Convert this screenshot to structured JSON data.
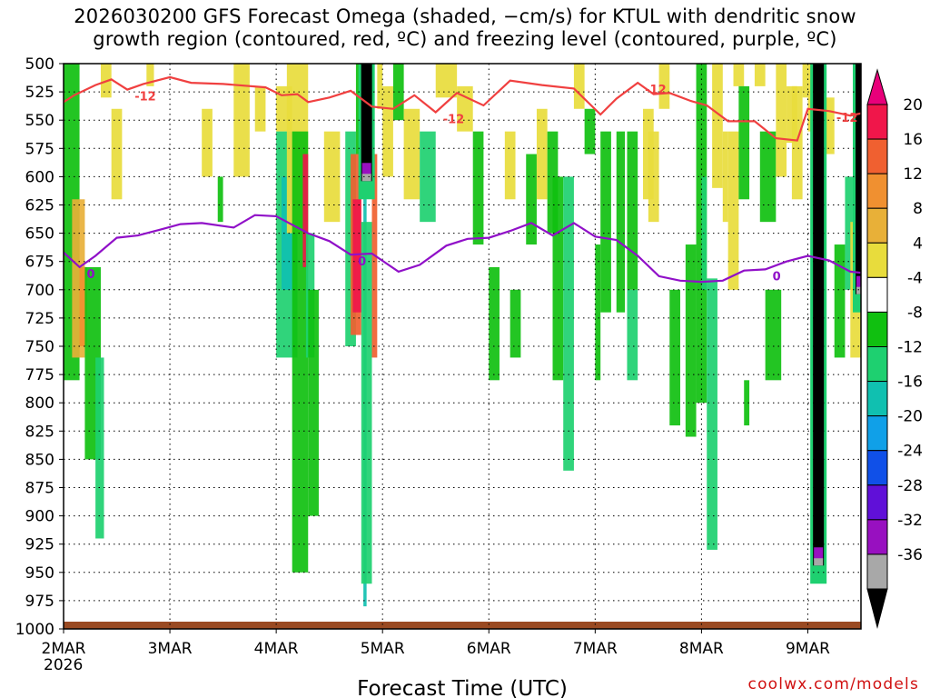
{
  "title": {
    "line1": "2026030200 GFS Forecast Omega (shaded, −cm/s) for KTUL with dendritic snow",
    "line2": "growth region (contoured, red, ºC) and freezing level (contoured, purple, ºC)"
  },
  "credit": "coolwx.com/models",
  "chart_data": {
    "type": "heatmap",
    "title": "2026030200 GFS Forecast Omega (shaded, −cm/s) for KTUL with dendritic snow growth region (contoured, red, ºC) and freezing level (contoured, purple, ºC)",
    "xlabel": "Forecast Time (UTC)",
    "ylabel": "",
    "x_axis": {
      "ticks": [
        "2MAR",
        "3MAR",
        "4MAR",
        "5MAR",
        "6MAR",
        "7MAR",
        "8MAR",
        "9MAR"
      ],
      "sub_label": "2026",
      "range_days": [
        0,
        7.5
      ]
    },
    "y_axis": {
      "ticks": [
        500,
        525,
        550,
        575,
        600,
        625,
        650,
        675,
        700,
        725,
        750,
        775,
        800,
        825,
        850,
        875,
        900,
        925,
        950,
        975,
        1000
      ],
      "range_hpa": [
        500,
        1000
      ],
      "inverted": true
    },
    "grid": true,
    "colorbar": {
      "labels": [
        "20",
        "16",
        "12",
        "8",
        "4",
        "-4",
        "-8",
        "-12",
        "-16",
        "-20",
        "-24",
        "-28",
        "-32",
        "-36"
      ],
      "colors": [
        "#f0164a",
        "#f06030",
        "#f09030",
        "#e8b038",
        "#e8dc3c",
        "#ffffff",
        "#10c010",
        "#1ed070",
        "#10c0b0",
        "#10a0e8",
        "#1050e8",
        "#6010d8",
        "#9810c0",
        "#a8a8a8",
        "#000000"
      ]
    },
    "contours": [
      {
        "name": "dendritic snow growth region (-12 ºC)",
        "color": "#f04040",
        "label": "-12",
        "points": [
          [
            0,
            534
          ],
          [
            0.1,
            528
          ],
          [
            0.3,
            519
          ],
          [
            0.45,
            514
          ],
          [
            0.6,
            523
          ],
          [
            0.75,
            518
          ],
          [
            1.0,
            512
          ],
          [
            1.2,
            517
          ],
          [
            1.5,
            518
          ],
          [
            1.9,
            521
          ],
          [
            2.05,
            528
          ],
          [
            2.2,
            527
          ],
          [
            2.3,
            534
          ],
          [
            2.5,
            530
          ],
          [
            2.7,
            524
          ],
          [
            2.9,
            538
          ],
          [
            3.1,
            540
          ],
          [
            3.3,
            528
          ],
          [
            3.5,
            543
          ],
          [
            3.7,
            526
          ],
          [
            3.95,
            537
          ],
          [
            4.2,
            515
          ],
          [
            4.5,
            519
          ],
          [
            4.8,
            522
          ],
          [
            5.05,
            545
          ],
          [
            5.2,
            531
          ],
          [
            5.4,
            517
          ],
          [
            5.55,
            527
          ],
          [
            5.7,
            526
          ],
          [
            5.9,
            533
          ],
          [
            6.05,
            537
          ],
          [
            6.25,
            551
          ],
          [
            6.5,
            551
          ],
          [
            6.7,
            566
          ],
          [
            6.9,
            568
          ],
          [
            7.0,
            540
          ],
          [
            7.2,
            542
          ],
          [
            7.4,
            546
          ],
          [
            7.5,
            544
          ]
        ]
      },
      {
        "name": "freezing level (0 ºC)",
        "color": "#9010c8",
        "label": "0",
        "points": [
          [
            0,
            667
          ],
          [
            0.15,
            680
          ],
          [
            0.3,
            670
          ],
          [
            0.5,
            654
          ],
          [
            0.7,
            652
          ],
          [
            0.9,
            647
          ],
          [
            1.1,
            642
          ],
          [
            1.3,
            641
          ],
          [
            1.6,
            645
          ],
          [
            1.8,
            634
          ],
          [
            2.0,
            635
          ],
          [
            2.3,
            650
          ],
          [
            2.5,
            657
          ],
          [
            2.7,
            669
          ],
          [
            2.9,
            668
          ],
          [
            3.15,
            684
          ],
          [
            3.35,
            678
          ],
          [
            3.6,
            661
          ],
          [
            3.8,
            655
          ],
          [
            4.0,
            654
          ],
          [
            4.2,
            648
          ],
          [
            4.4,
            641
          ],
          [
            4.6,
            652
          ],
          [
            4.8,
            641
          ],
          [
            5.0,
            653
          ],
          [
            5.2,
            656
          ],
          [
            5.4,
            670
          ],
          [
            5.6,
            688
          ],
          [
            5.8,
            692
          ],
          [
            6.0,
            693
          ],
          [
            6.2,
            692
          ],
          [
            6.4,
            683
          ],
          [
            6.6,
            682
          ],
          [
            6.8,
            675
          ],
          [
            7.0,
            670
          ],
          [
            7.2,
            674
          ],
          [
            7.4,
            684
          ],
          [
            7.5,
            685
          ]
        ]
      }
    ],
    "dominant_features": [
      {
        "time_days": 7.1,
        "pressure_range": [
          500,
          960
        ],
        "min_value_label": "-36"
      },
      {
        "time_days": 7.5,
        "pressure_range": [
          500,
          720
        ],
        "min_value_label": "-36"
      },
      {
        "time_days": 2.85,
        "pressure_range": [
          500,
          620
        ],
        "min_value_label": "-36"
      }
    ]
  }
}
